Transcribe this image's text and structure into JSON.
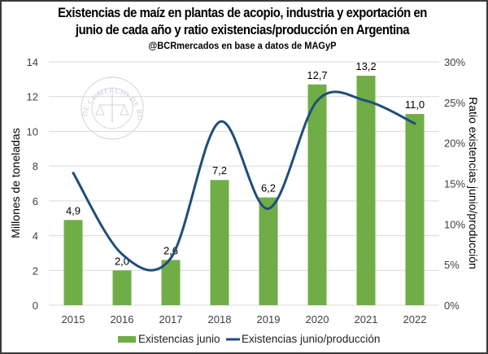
{
  "header": {
    "title_line1": "Existencias de maíz en plantas de acopio, industria y exportación en",
    "title_line2": "junio de cada año y ratio existencias/producción en Argentina",
    "subtitle": "@BCRmercados  en base a datos de MAGyP"
  },
  "watermark": {
    "text": "BOLSA DE COMERCIO DE ROSARIO"
  },
  "colors": {
    "bars": "#70AD47",
    "line": "#1F4E79",
    "grid": "#D9D9D9"
  },
  "chart_data": {
    "type": "bar",
    "combo": "bar+line (secondary axis, smoothed)",
    "title": "Existencias de maíz en plantas de acopio, industria y exportación en junio de cada año y ratio existencias/producción en Argentina",
    "subtitle": "@BCRmercados  en base a datos de MAGyP",
    "categories": [
      "2015",
      "2016",
      "2017",
      "2018",
      "2019",
      "2020",
      "2021",
      "2022"
    ],
    "ylabel": "Millones de toneladas",
    "y2label": "Ratio existencias junio/producción",
    "ylim": [
      0,
      14
    ],
    "y2lim": [
      0,
      0.3
    ],
    "yticks": [
      "0",
      "2",
      "4",
      "6",
      "8",
      "10",
      "12",
      "14"
    ],
    "y2ticks": [
      "0%",
      "5%",
      "10%",
      "15%",
      "20%",
      "25%",
      "30%"
    ],
    "grid": true,
    "legend_position": "bottom",
    "series": [
      {
        "name": "Existencias junio",
        "type": "bar",
        "axis": "primary",
        "values": [
          4.9,
          2.0,
          2.6,
          7.2,
          6.2,
          12.7,
          13.2,
          11.0
        ],
        "labels": [
          "4,9",
          "2,0",
          "2,6",
          "7,2",
          "6,2",
          "12,7",
          "13,2",
          "11,0"
        ]
      },
      {
        "name": "Existencias junio/producción",
        "type": "line",
        "axis": "secondary",
        "smooth": true,
        "values": [
          0.163,
          0.063,
          0.058,
          0.226,
          0.119,
          0.252,
          0.252,
          0.224
        ]
      }
    ]
  }
}
